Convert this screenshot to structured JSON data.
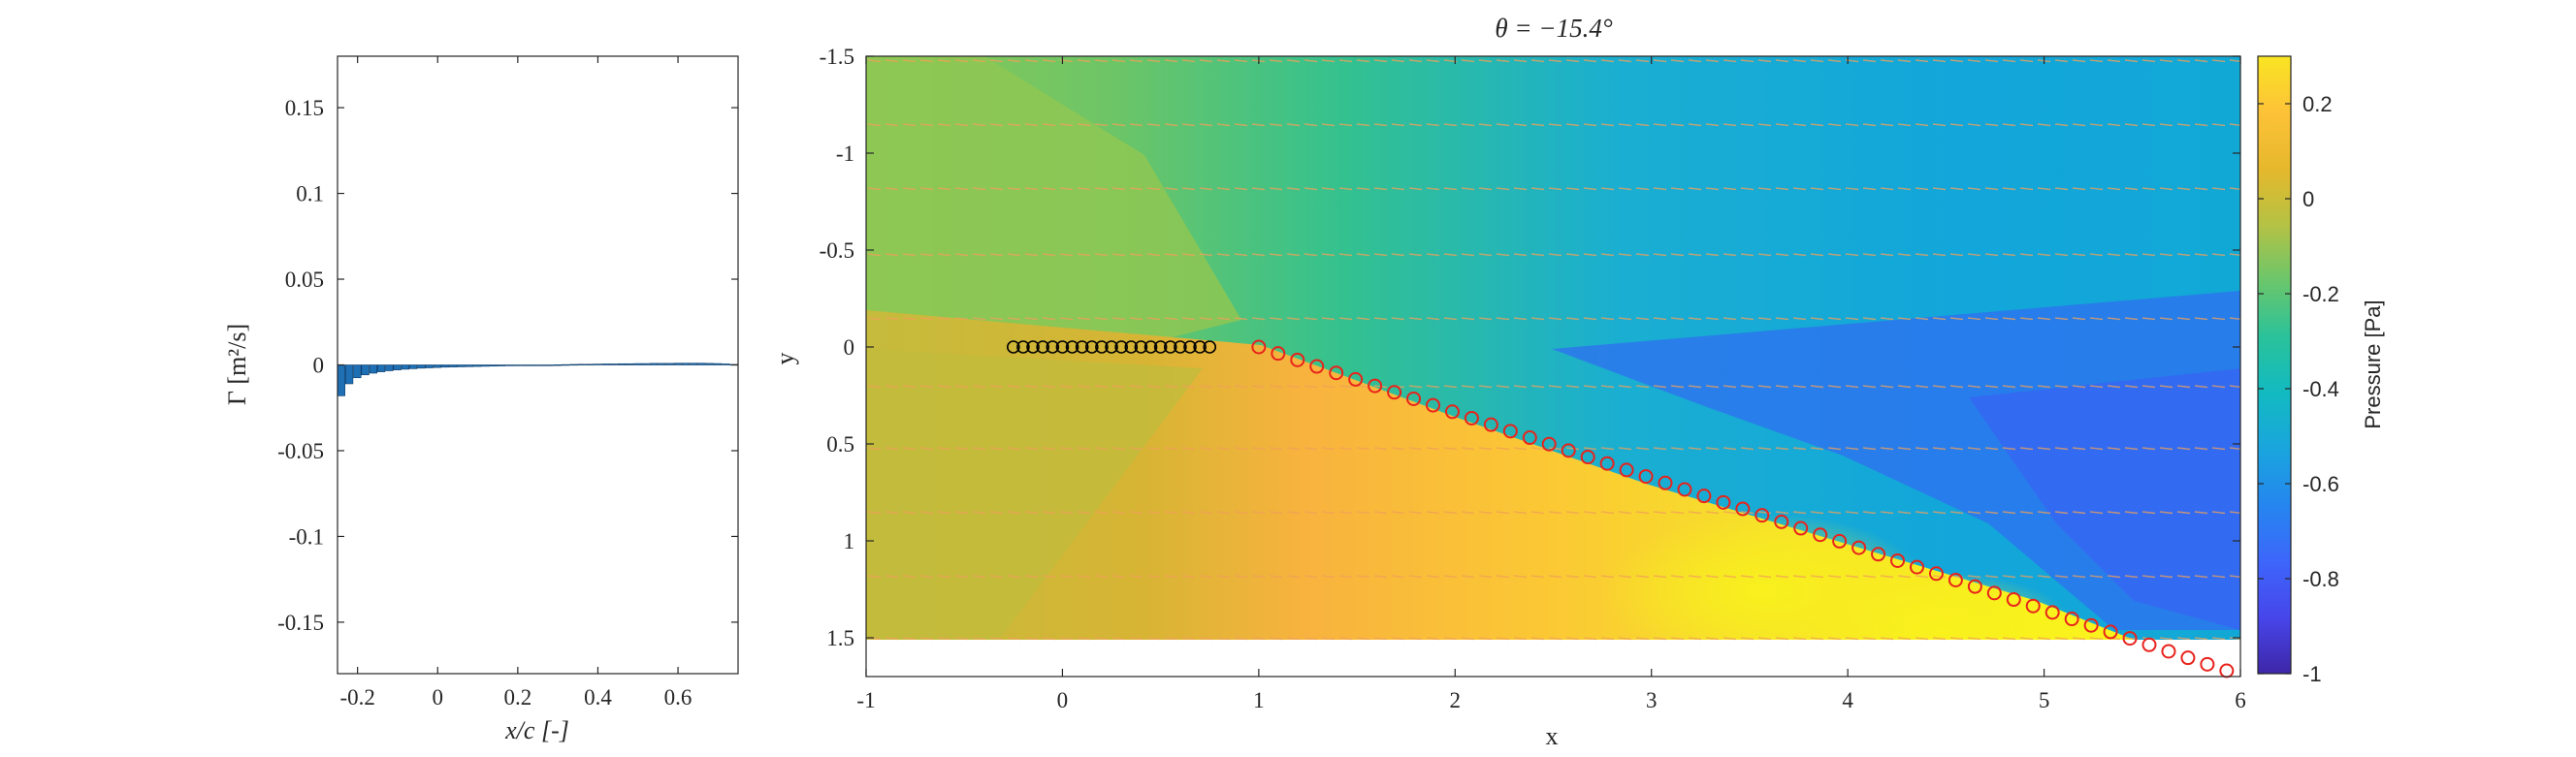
{
  "figure": {
    "right_title": "θ = −15.4°"
  },
  "chart_data": [
    {
      "type": "bar",
      "xlabel": "x/c [-]",
      "ylabel": "Γ [m²/s]",
      "xlim": [
        -0.25,
        0.75
      ],
      "ylim": [
        -0.18,
        0.18
      ],
      "xticks": [
        -0.2,
        0,
        0.2,
        0.4,
        0.6
      ],
      "xtick_labels": [
        "-0.2",
        "0",
        "0.2",
        "0.4",
        "0.6"
      ],
      "yticks": [
        0.15,
        0.1,
        0.05,
        0,
        -0.05,
        -0.1,
        -0.15
      ],
      "ytick_labels": [
        "0.15",
        "0.1",
        "0.05",
        "0",
        "-0.05",
        "-0.1",
        "-0.15"
      ],
      "bar_color": "#1f6fb4",
      "x": [
        -0.24,
        -0.22,
        -0.2,
        -0.18,
        -0.16,
        -0.14,
        -0.12,
        -0.1,
        -0.08,
        -0.06,
        -0.04,
        -0.02,
        0.0,
        0.02,
        0.04,
        0.06,
        0.08,
        0.1,
        0.12,
        0.14,
        0.16,
        0.18,
        0.2,
        0.22,
        0.24,
        0.26,
        0.28,
        0.3,
        0.32,
        0.34,
        0.36,
        0.38,
        0.4,
        0.42,
        0.44,
        0.46,
        0.48,
        0.5,
        0.52,
        0.54,
        0.56,
        0.58,
        0.6,
        0.62,
        0.64,
        0.66,
        0.68,
        0.7,
        0.72,
        0.74
      ],
      "values": [
        -0.018,
        -0.011,
        -0.0075,
        -0.0058,
        -0.0048,
        -0.004,
        -0.0034,
        -0.0029,
        -0.0025,
        -0.0022,
        -0.0019,
        -0.0017,
        -0.0015,
        -0.0013,
        -0.0012,
        -0.0011,
        -0.001,
        -0.0009,
        -0.0008,
        -0.0007,
        -0.0006,
        -0.0005,
        -0.0004,
        -0.0003,
        -0.0002,
        -0.0001,
        0.0,
        0.0001,
        0.0002,
        0.0003,
        0.0004,
        0.0004,
        0.0005,
        0.0006,
        0.0006,
        0.0007,
        0.0007,
        0.0008,
        0.0008,
        0.0009,
        0.0009,
        0.0009,
        0.001,
        0.001,
        0.001,
        0.001,
        0.0009,
        0.0008,
        0.0006,
        0.0003
      ]
    },
    {
      "type": "heatmap",
      "xlabel": "x",
      "ylabel": "y",
      "xlim": [
        -1,
        6
      ],
      "ylim": [
        -1.5,
        1.7
      ],
      "y_reversed": true,
      "xticks": [
        -1,
        0,
        1,
        2,
        3,
        4,
        5,
        6
      ],
      "xtick_labels": [
        "-1",
        "0",
        "1",
        "2",
        "3",
        "4",
        "5",
        "6"
      ],
      "yticks": [
        -1.5,
        -1,
        -0.5,
        0,
        0.5,
        1,
        1.5
      ],
      "ytick_labels": [
        "-1.5",
        "-1",
        "-0.5",
        "0",
        "0.5",
        "1",
        "1.5"
      ],
      "colorbar": {
        "label": "Pressure [Pa]",
        "range": [
          -1,
          0.3
        ],
        "ticks": [
          0.2,
          0,
          -0.2,
          -0.4,
          -0.6,
          -0.8,
          -1
        ],
        "tick_labels": [
          "0.2",
          "0",
          "-0.2",
          "-0.4",
          "-0.6",
          "-0.8",
          "-1"
        ],
        "colormap": [
          "#3e26a8",
          "#4746eb",
          "#3d66fb",
          "#2586ef",
          "#1aa5de",
          "#12bac1",
          "#2ac29a",
          "#6bc66b",
          "#b5c244",
          "#e6b82c",
          "#fdc238",
          "#f9e522"
        ]
      },
      "foil_markers": {
        "color": "#000000",
        "x": [
          -0.25,
          -0.2,
          -0.15,
          -0.1,
          -0.05,
          0.0,
          0.05,
          0.1,
          0.15,
          0.2,
          0.25,
          0.3,
          0.35,
          0.4,
          0.45,
          0.5,
          0.55,
          0.6,
          0.65,
          0.7,
          0.75
        ],
        "y": [
          0,
          0,
          0,
          0,
          0,
          0,
          0,
          0,
          0,
          0,
          0,
          0,
          0,
          0,
          0,
          0,
          0,
          0,
          0,
          0,
          0
        ]
      },
      "wake_markers": {
        "color": "#e8231c",
        "x_start": 1.0,
        "x_end": 5.93,
        "y_start": 0.0,
        "y_end": 1.67,
        "count": 51
      }
    }
  ]
}
